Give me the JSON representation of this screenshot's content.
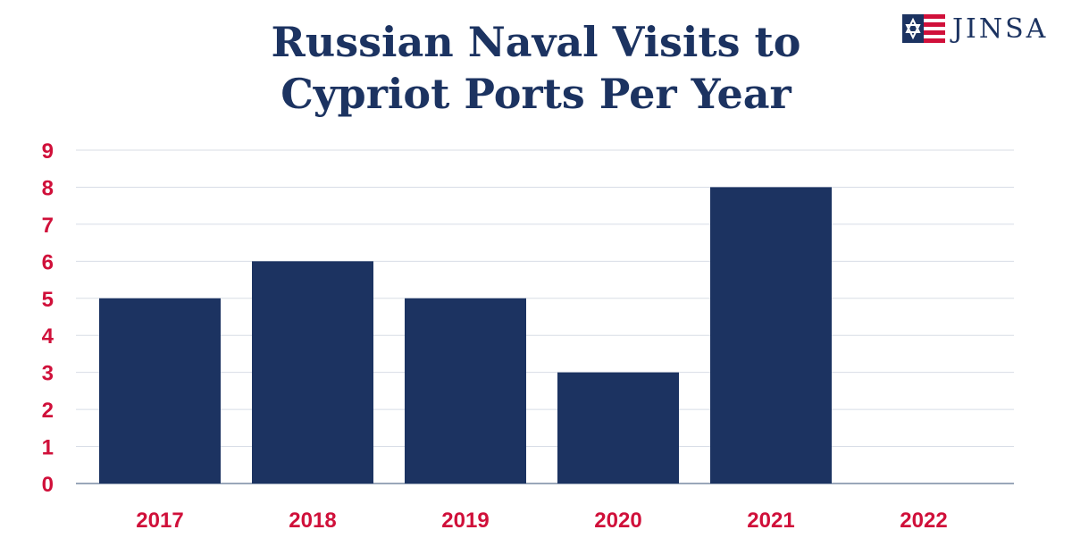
{
  "title_lines": [
    "Russian Naval Visits to",
    "Cypriot Ports Per Year"
  ],
  "logo": {
    "text": "JINSA",
    "icon": "flag-star-icon"
  },
  "colors": {
    "bar": "#1c3361",
    "tick_label": "#d0103a",
    "title": "#1c3361",
    "grid": "#d8dde6",
    "baseline": "#9aa7ba"
  },
  "chart_data": {
    "type": "bar",
    "categories": [
      "2017",
      "2018",
      "2019",
      "2020",
      "2021",
      "2022"
    ],
    "values": [
      5,
      6,
      5,
      3,
      8,
      0
    ],
    "yticks": [
      "0",
      "1",
      "2",
      "3",
      "4",
      "5",
      "6",
      "7",
      "8",
      "9"
    ],
    "ylim": [
      0,
      9
    ],
    "grid": true,
    "legend": "none"
  }
}
